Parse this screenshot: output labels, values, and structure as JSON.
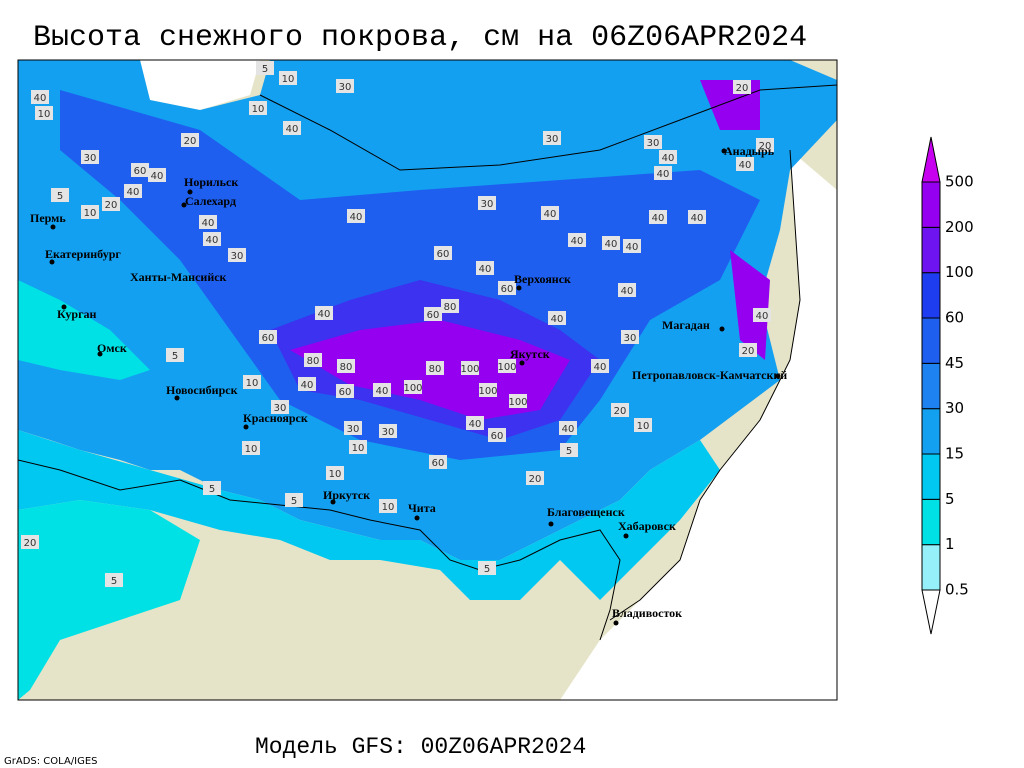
{
  "title": "Высота снежного покрова, см на 06Z06APR2024",
  "footer": "Модель GFS: 00Z06APR2024",
  "credit": "GrADS: COLA/IGES",
  "legend": {
    "levels": [
      0.5,
      1,
      5,
      15,
      30,
      45,
      60,
      100,
      200,
      500
    ],
    "colors": [
      "#ffffff",
      "#96f0fa",
      "#00e1e6",
      "#00c8f0",
      "#14a0f0",
      "#1e82f0",
      "#1e5ff0",
      "#1e3cf0",
      "#6e14f0",
      "#9600f0",
      "#c800f0"
    ]
  },
  "cities": [
    "Норильск",
    "Салехард",
    "Пермь",
    "Екатеринбург",
    "Ханты-Мансийск",
    "Курган",
    "Омск",
    "Новосибирск",
    "Красноярск",
    "Иркутск",
    "Чита",
    "Благовещенск",
    "Хабаровск",
    "Владивосток",
    "Якутск",
    "Верхоянск",
    "Магадан",
    "Петропавловск-Камчатский",
    "Анадырь"
  ],
  "contour_labels": [
    "5",
    "10",
    "30",
    "30",
    "40",
    "10",
    "10",
    "40",
    "20",
    "30",
    "60",
    "40",
    "40",
    "20",
    "10",
    "5",
    "40",
    "30",
    "40",
    "40",
    "30",
    "40",
    "60",
    "40",
    "40",
    "40",
    "40",
    "40",
    "40",
    "30",
    "40",
    "40",
    "20",
    "40",
    "20",
    "40",
    "60",
    "80",
    "60",
    "40",
    "40",
    "30",
    "60",
    "5",
    "80",
    "80",
    "80",
    "100",
    "100",
    "40",
    "40",
    "60",
    "40",
    "100",
    "100",
    "100",
    "10",
    "30",
    "20",
    "40",
    "60",
    "40",
    "30",
    "30",
    "10",
    "10",
    "5",
    "60",
    "20",
    "10",
    "5",
    "5",
    "10",
    "10",
    "20",
    "40",
    "5",
    "5",
    "20"
  ]
}
